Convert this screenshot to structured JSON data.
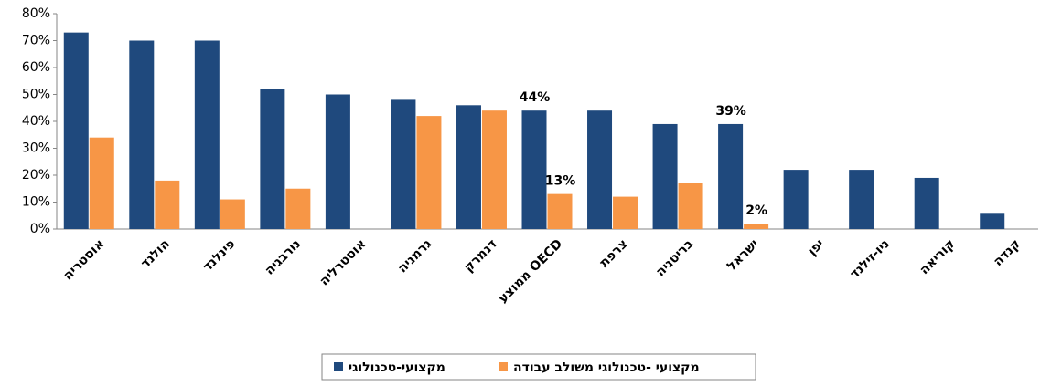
{
  "chart_data": {
    "type": "bar",
    "categories": [
      "אוסטריה",
      "הולנד",
      "פינלנד",
      "נורבגיה",
      "אוסטרליה",
      "גרמניה",
      "דנמרק",
      "ממוצע OECD",
      "צרפת",
      "בריטניה",
      "ישראל",
      "יפן",
      "ניו-זילנד",
      "קוריאה",
      "קנדה"
    ],
    "series": [
      {
        "name": "מקצועי-טכנולוגי",
        "color": "#1f497d",
        "values": [
          73,
          70,
          70,
          52,
          50,
          48,
          46,
          44,
          44,
          39,
          39,
          22,
          22,
          19,
          6
        ],
        "value_labels": [
          null,
          null,
          null,
          null,
          null,
          null,
          null,
          "44%",
          null,
          null,
          "39%",
          null,
          null,
          null,
          null
        ]
      },
      {
        "name": "מקצועי -טכנולוגי משולב עבודה",
        "color": "#f79646",
        "values": [
          34,
          18,
          11,
          15,
          null,
          42,
          44,
          13,
          12,
          17,
          2,
          null,
          null,
          null,
          null
        ],
        "value_labels": [
          null,
          null,
          null,
          null,
          null,
          null,
          null,
          "13%",
          null,
          null,
          "2%",
          null,
          null,
          null,
          null
        ]
      }
    ],
    "ylim": [
      0,
      80
    ],
    "yticks": [
      {
        "value": 0,
        "label": "0%"
      },
      {
        "value": 10,
        "label": "10%"
      },
      {
        "value": 20,
        "label": "20%"
      },
      {
        "value": 30,
        "label": "30%"
      },
      {
        "value": 40,
        "label": "40%"
      },
      {
        "value": 50,
        "label": "50%"
      },
      {
        "value": 60,
        "label": "60%"
      },
      {
        "value": 70,
        "label": "70%"
      },
      {
        "value": 80,
        "label": "80%"
      }
    ],
    "grid": false,
    "legend": "bottom"
  }
}
